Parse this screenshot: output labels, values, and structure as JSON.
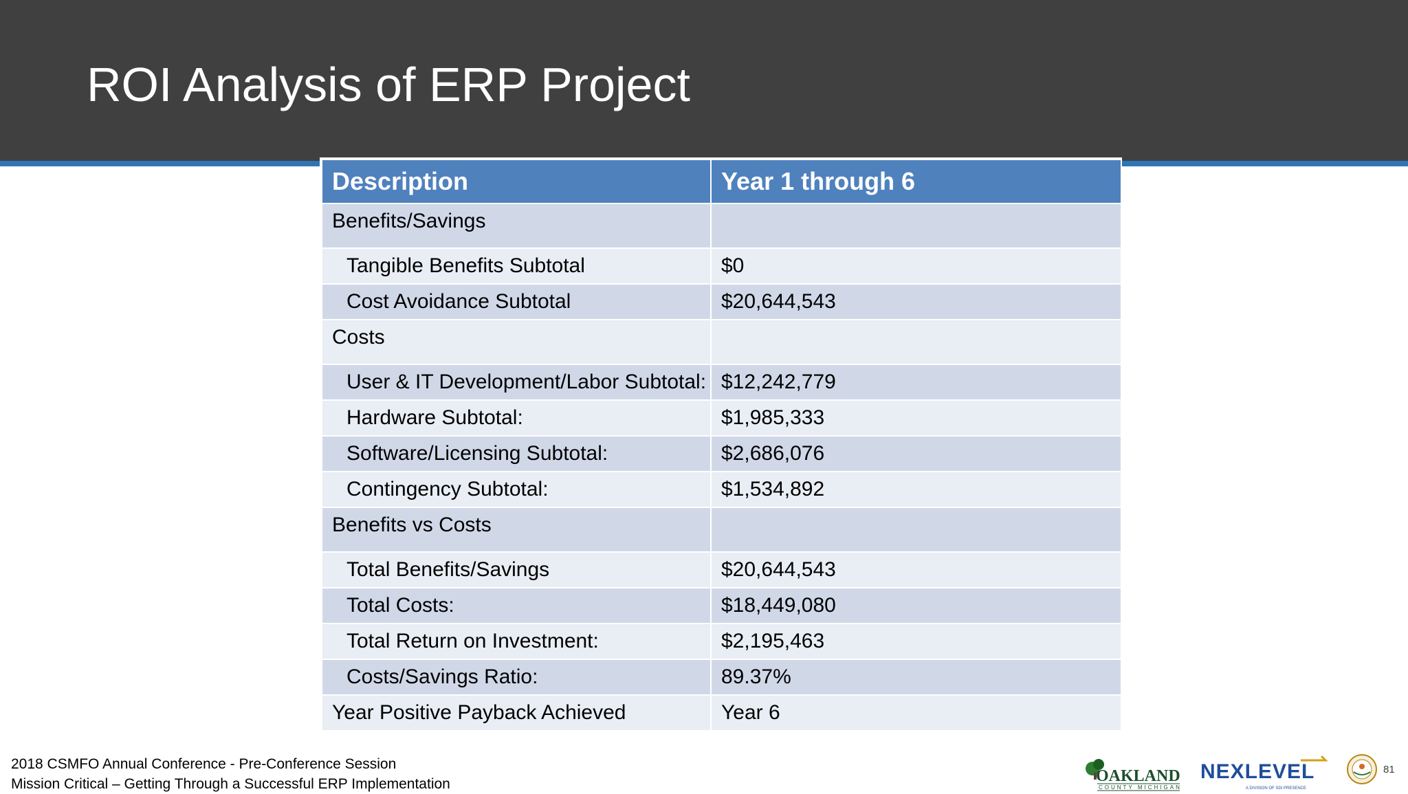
{
  "slide": {
    "title": "ROI Analysis of ERP Project",
    "page_number": "81"
  },
  "table": {
    "headers": [
      "Description",
      "Year 1 through 6"
    ],
    "rows": [
      {
        "label": "Benefits/Savings",
        "value": "",
        "indent": false,
        "section": true
      },
      {
        "label": "Tangible Benefits Subtotal",
        "value": "$0",
        "indent": true,
        "section": false
      },
      {
        "label": "Cost Avoidance Subtotal",
        "value": "$20,644,543",
        "indent": true,
        "section": false
      },
      {
        "label": "Costs",
        "value": "",
        "indent": false,
        "section": true
      },
      {
        "label": "User & IT Development/Labor Subtotal:",
        "value": "$12,242,779",
        "indent": true,
        "section": false
      },
      {
        "label": "Hardware Subtotal:",
        "value": "$1,985,333",
        "indent": true,
        "section": false
      },
      {
        "label": "Software/Licensing Subtotal:",
        "value": "$2,686,076",
        "indent": true,
        "section": false
      },
      {
        "label": "Contingency Subtotal:",
        "value": "$1,534,892",
        "indent": true,
        "section": false
      },
      {
        "label": "Benefits vs Costs",
        "value": "",
        "indent": false,
        "section": true
      },
      {
        "label": "Total Benefits/Savings",
        "value": "$20,644,543",
        "indent": true,
        "section": false
      },
      {
        "label": "Total Costs:",
        "value": "$18,449,080",
        "indent": true,
        "section": false
      },
      {
        "label": "Total Return on Investment:",
        "value": "$2,195,463",
        "indent": true,
        "section": false
      },
      {
        "label": "Costs/Savings Ratio:",
        "value": "89.37%",
        "indent": true,
        "section": false
      },
      {
        "label": "Year Positive Payback Achieved",
        "value": "Year 6",
        "indent": false,
        "section": false
      }
    ]
  },
  "footer": {
    "line1": "2018 CSMFO Annual Conference - Pre-Conference Session",
    "line2": "Mission Critical – Getting Through a Successful ERP Implementation"
  },
  "logos": {
    "oakland": "OAKLAND",
    "oakland_sub": "COUNTY MICHIGAN",
    "nexlevel": "NEXLEVEL",
    "nexlevel_sub": "A DIVISION OF SDI PRESENCE"
  },
  "colors": {
    "header_bg": "#404040",
    "accent_stripe": "#2E75B6",
    "table_header": "#4F81BD",
    "row_dark": "#D0D8E8",
    "row_light": "#E9EDF4"
  }
}
